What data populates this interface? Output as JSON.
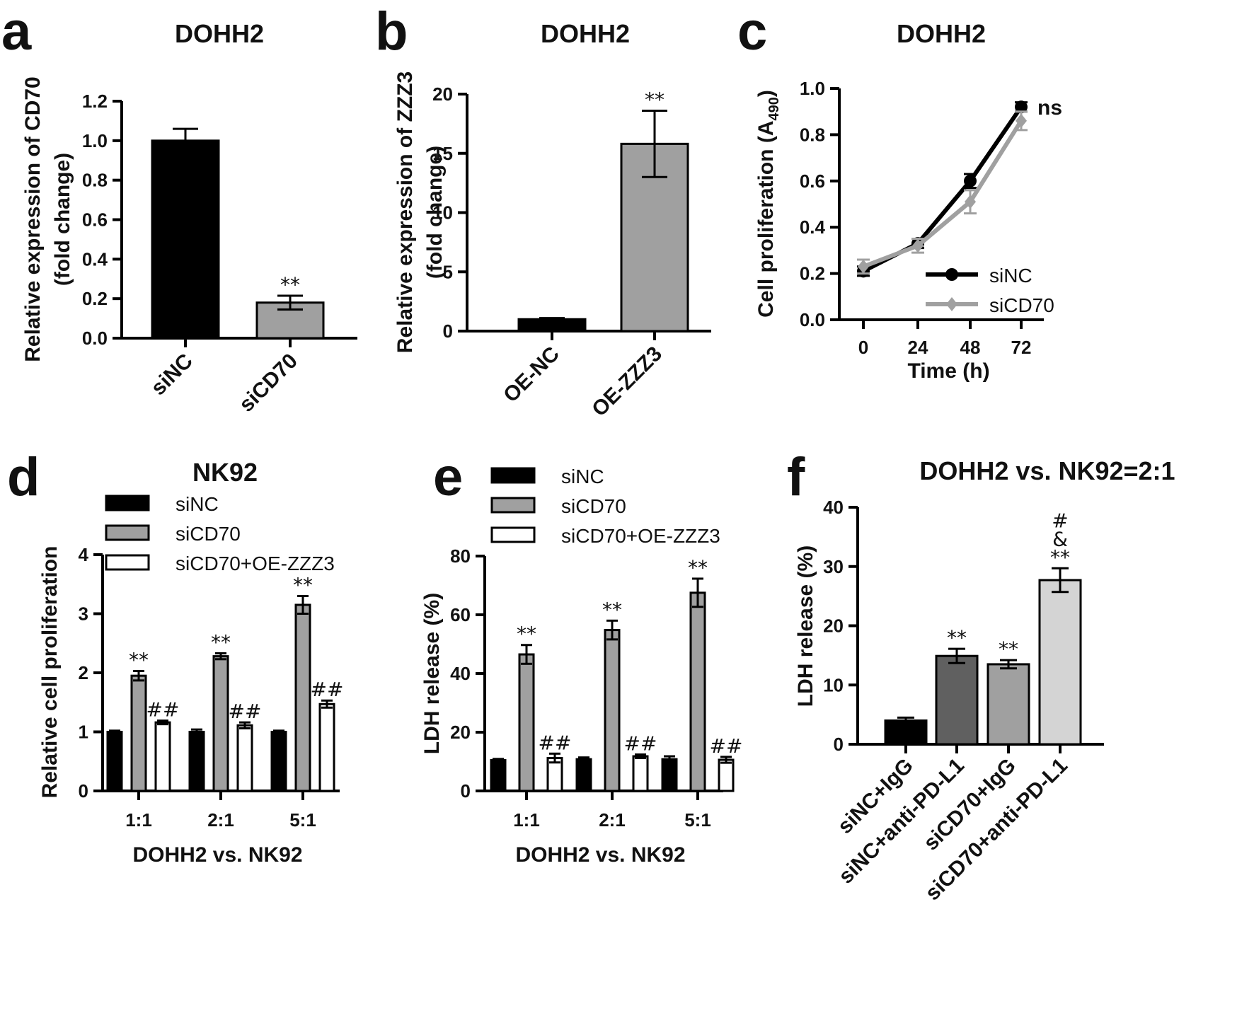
{
  "chart_data": [
    {
      "panel": "a",
      "type": "bar",
      "title": "DOHH2",
      "ylabel": "Relative expression of CD70 (fold change)",
      "categories": [
        "siNC",
        "siCD70"
      ],
      "values": [
        1.0,
        0.18
      ],
      "errors": [
        0.06,
        0.035
      ],
      "colors": [
        "#000000",
        "#a0a0a0"
      ],
      "significance": [
        "",
        "**"
      ],
      "ylim": [
        0,
        1.2
      ],
      "yticks": [
        "0.0",
        "0.2",
        "0.4",
        "0.6",
        "0.8",
        "1.0",
        "1.2"
      ]
    },
    {
      "panel": "b",
      "type": "bar",
      "title": "DOHH2",
      "ylabel": "Relative expression of ZZZ3 (fold change)",
      "categories": [
        "OE-NC",
        "OE-ZZZ3"
      ],
      "values": [
        1.0,
        15.8
      ],
      "errors": [
        0.1,
        2.8
      ],
      "colors": [
        "#000000",
        "#a0a0a0"
      ],
      "significance": [
        "",
        "**"
      ],
      "ylim": [
        0,
        20
      ],
      "yticks": [
        "0",
        "5",
        "10",
        "15",
        "20"
      ]
    },
    {
      "panel": "c",
      "type": "line",
      "title": "DOHH2",
      "xlabel": "Time (h)",
      "ylabel": "Cell proliferation (A490)",
      "x": [
        0,
        24,
        48,
        72
      ],
      "xticks": [
        "0",
        "24",
        "48",
        "72"
      ],
      "series": [
        {
          "name": "siNC",
          "values": [
            0.21,
            0.33,
            0.6,
            0.92
          ],
          "errors": [
            0.02,
            0.02,
            0.03,
            0.02
          ],
          "color": "#000000"
        },
        {
          "name": "siCD70",
          "values": [
            0.23,
            0.32,
            0.51,
            0.86
          ],
          "errors": [
            0.03,
            0.03,
            0.05,
            0.04
          ],
          "color": "#a0a0a0"
        }
      ],
      "annotation": "ns",
      "ylim": [
        0,
        1.0
      ],
      "yticks": [
        "0.0",
        "0.2",
        "0.4",
        "0.6",
        "0.8",
        "1.0"
      ]
    },
    {
      "panel": "d",
      "type": "bar",
      "title": "NK92",
      "xlabel": "DOHH2 vs. NK92",
      "ylabel": "Relative cell proliferation",
      "categories": [
        "1:1",
        "2:1",
        "5:1"
      ],
      "series": [
        {
          "name": "siNC",
          "values": [
            1.0,
            1.0,
            1.0
          ],
          "errors": [
            0.02,
            0.04,
            0.02
          ],
          "color": "#000000",
          "significance": [
            "",
            "",
            ""
          ]
        },
        {
          "name": "siCD70",
          "values": [
            1.95,
            2.28,
            3.15
          ],
          "errors": [
            0.08,
            0.05,
            0.15
          ],
          "color": "#a0a0a0",
          "significance": [
            "**",
            "**",
            "**"
          ]
        },
        {
          "name": "siCD70+OE-ZZZ3",
          "values": [
            1.16,
            1.11,
            1.47
          ],
          "errors": [
            0.03,
            0.05,
            0.06
          ],
          "color": "#ffffff",
          "significance": [
            "##",
            "##",
            "##"
          ]
        }
      ],
      "ylim": [
        0,
        4
      ],
      "yticks": [
        "0",
        "1",
        "2",
        "3",
        "4"
      ]
    },
    {
      "panel": "e",
      "type": "bar",
      "xlabel": "DOHH2 vs. NK92",
      "ylabel": "LDH release (%)",
      "categories": [
        "1:1",
        "2:1",
        "5:1"
      ],
      "series": [
        {
          "name": "siNC",
          "values": [
            10.5,
            10.8,
            10.8
          ],
          "errors": [
            0.4,
            0.6,
            1.0
          ],
          "color": "#000000",
          "significance": [
            "",
            "",
            ""
          ]
        },
        {
          "name": "siCD70",
          "values": [
            46.5,
            54.8,
            67.5
          ],
          "errors": [
            3.2,
            3.2,
            4.8
          ],
          "color": "#a0a0a0",
          "significance": [
            "**",
            "**",
            "**"
          ]
        },
        {
          "name": "siCD70+OE-ZZZ3",
          "values": [
            11.2,
            11.8,
            10.6
          ],
          "errors": [
            1.5,
            0.6,
            1.0
          ],
          "color": "#ffffff",
          "significance": [
            "##",
            "##",
            "##"
          ]
        }
      ],
      "ylim": [
        0,
        80
      ],
      "yticks": [
        "0",
        "20",
        "40",
        "60",
        "80"
      ]
    },
    {
      "panel": "f",
      "type": "bar",
      "title": "DOHH2 vs. NK92=2:1",
      "ylabel": "LDH release (%)",
      "categories": [
        "siNC+IgG",
        "siNC+anti-PD-L1",
        "siCD70+IgG",
        "siCD70+anti-PD-L1"
      ],
      "values": [
        4.0,
        14.9,
        13.5,
        27.7
      ],
      "errors": [
        0.5,
        1.2,
        0.7,
        2.0
      ],
      "colors": [
        "#000000",
        "#606060",
        "#a0a0a0",
        "#d4d4d4"
      ],
      "significance": [
        "",
        "**",
        "**",
        "**"
      ],
      "extra_marks": {
        "amp": "&",
        "hash": "#"
      },
      "ylim": [
        0,
        40
      ],
      "yticks": [
        "0",
        "10",
        "20",
        "30",
        "40"
      ]
    }
  ]
}
